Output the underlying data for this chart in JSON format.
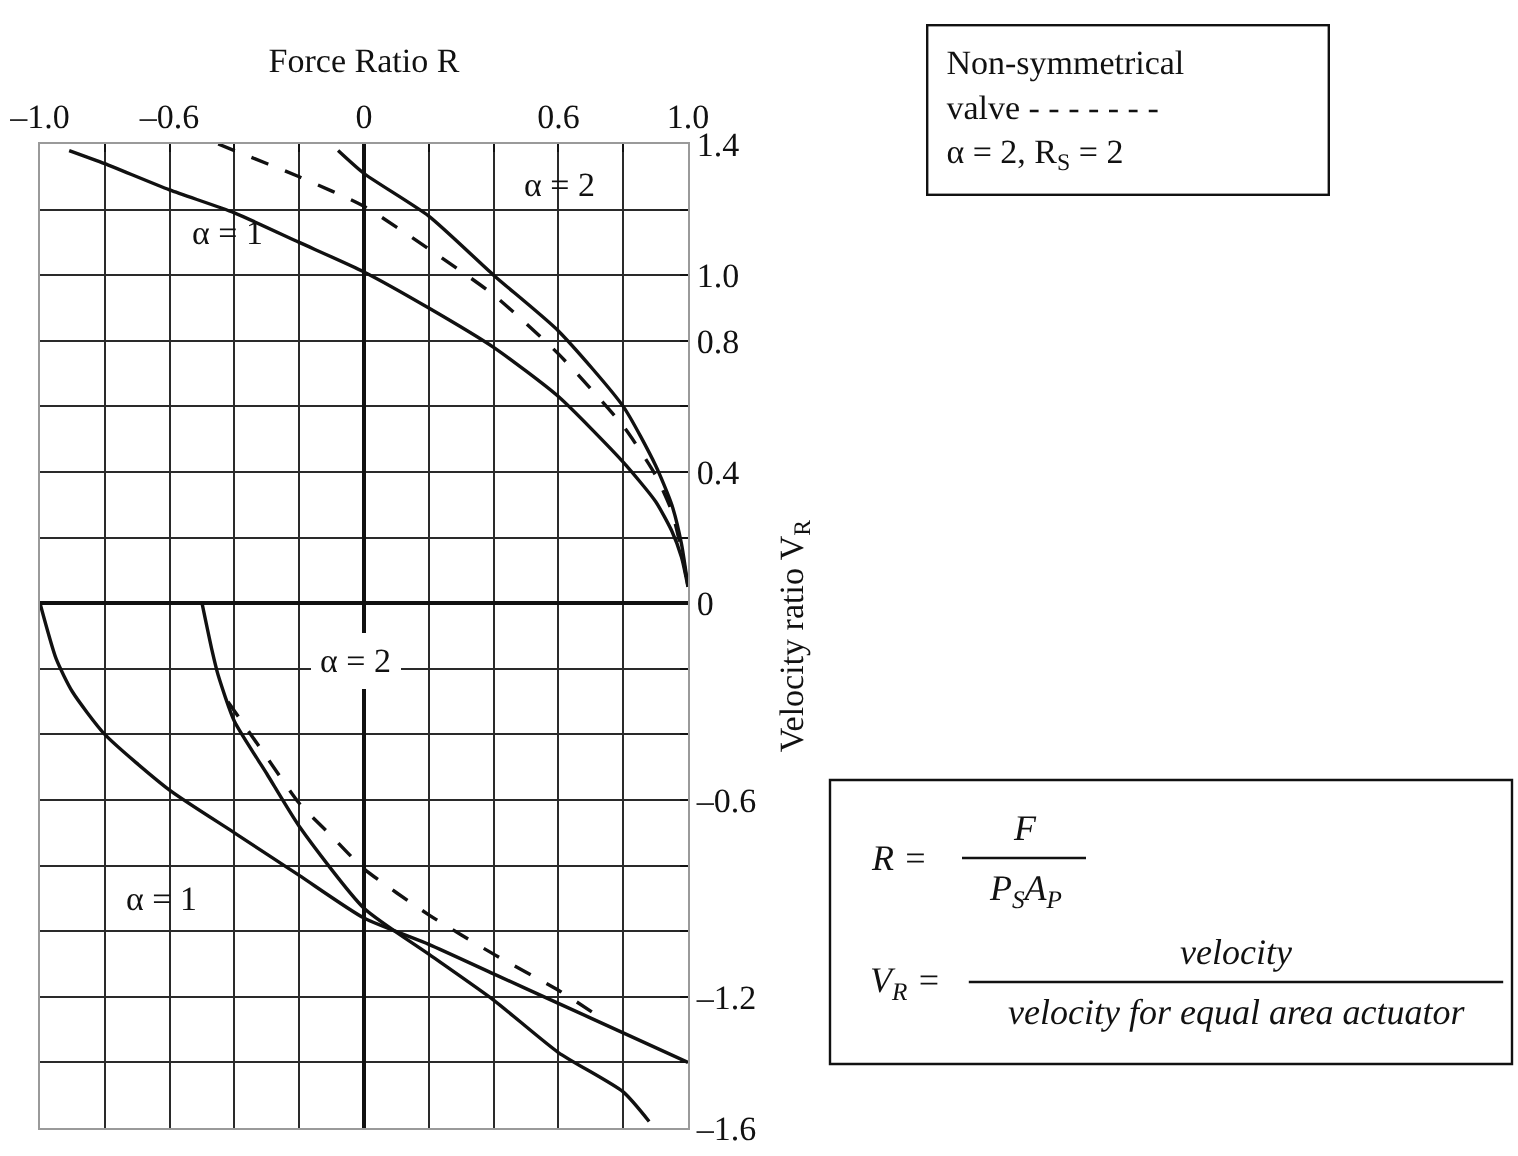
{
  "chart_data": {
    "type": "line",
    "xlabel": "Force Ratio R",
    "ylabel": "Velocity ratio V$_{R}$",
    "xlim": [
      -1,
      1
    ],
    "ylim": [
      -1.6,
      1.4
    ],
    "xticks": [
      {
        "value": -1,
        "label": "–1.0"
      },
      {
        "value": -0.8,
        "label": null
      },
      {
        "value": -0.6,
        "label": "–0.6"
      },
      {
        "value": -0.4,
        "label": null
      },
      {
        "value": -0.2,
        "label": null
      },
      0,
      {
        "value": 0.2,
        "label": null
      },
      {
        "value": 0.4,
        "label": null
      },
      0.6,
      {
        "value": 0.8,
        "label": null
      },
      {
        "value": 1,
        "label": "1.0"
      }
    ],
    "yticks": [
      1.4,
      {
        "value": 1.2,
        "label": null
      },
      {
        "value": 1,
        "label": "1.0"
      },
      0.8,
      {
        "value": 0.6,
        "label": null
      },
      0.4,
      {
        "value": 0.2,
        "label": null
      },
      0,
      {
        "value": -0.2,
        "label": null
      },
      {
        "value": -0.4,
        "label": null
      },
      {
        "value": -0.6,
        "label": "–0.6"
      },
      {
        "value": -0.8,
        "label": null
      },
      {
        "value": -1,
        "label": null
      },
      {
        "value": -1.2,
        "label": "–1.2"
      },
      {
        "value": -1.4,
        "label": null
      },
      {
        "value": -1.6,
        "label": "–1.6"
      }
    ],
    "grid": true,
    "line_style": "solid",
    "series": [
      {
        "color": "#111111",
        "x": [
          -0.91,
          -0.8,
          -0.6,
          -0.4,
          -0.2,
          0,
          0.2,
          0.4,
          0.6,
          0.8,
          0.9,
          0.95,
          0.98,
          1.0
        ],
        "values": [
          1.38,
          1.34,
          1.26,
          1.19,
          1.1,
          1.01,
          0.9,
          0.78,
          0.63,
          0.43,
          0.31,
          0.22,
          0.14,
          0.05
        ]
      },
      {
        "color": "#111111",
        "x": [
          -0.08,
          0,
          0.2,
          0.4,
          0.6,
          0.8,
          0.9,
          0.95,
          0.98,
          1.0
        ],
        "values": [
          1.38,
          1.31,
          1.18,
          1.0,
          0.83,
          0.6,
          0.42,
          0.3,
          0.18,
          0.05
        ]
      },
      {
        "color": "#111111",
        "line_style": "dashed",
        "x": [
          -0.45,
          -0.4,
          -0.2,
          0,
          0.2,
          0.4,
          0.6,
          0.8,
          0.9,
          0.95,
          0.98,
          1.0
        ],
        "values": [
          1.4,
          1.38,
          1.3,
          1.21,
          1.08,
          0.94,
          0.76,
          0.54,
          0.39,
          0.28,
          0.16,
          0.05
        ]
      },
      {
        "color": "#111111",
        "x": [
          -1.0,
          -0.95,
          -0.9,
          -0.8,
          -0.6,
          -0.4,
          -0.2,
          0,
          0.2,
          0.4,
          0.6,
          0.8,
          1.0
        ],
        "values": [
          0,
          -0.17,
          -0.27,
          -0.4,
          -0.57,
          -0.7,
          -0.83,
          -0.96,
          -1.04,
          -1.13,
          -1.22,
          -1.31,
          -1.4
        ]
      },
      {
        "color": "#111111",
        "x": [
          -0.5,
          -0.47,
          -0.45,
          -0.4,
          -0.3,
          -0.2,
          0,
          0.2,
          0.4,
          0.6,
          0.8,
          0.88
        ],
        "values": [
          0,
          -0.14,
          -0.22,
          -0.36,
          -0.52,
          -0.68,
          -0.93,
          -1.07,
          -1.21,
          -1.37,
          -1.49,
          -1.58
        ]
      },
      {
        "color": "#111111",
        "line_style": "dashed",
        "x": [
          -0.42,
          -0.3,
          -0.2,
          -0.1,
          0,
          0.2,
          0.4,
          0.6,
          0.74
        ],
        "values": [
          -0.3,
          -0.47,
          -0.61,
          -0.71,
          -0.81,
          -0.95,
          -1.07,
          -1.18,
          -1.27
        ]
      }
    ],
    "annotations": [
      "α = 1",
      "α = 2",
      "α = 2",
      "α = 1",
      "Non-symmetrical\nvalve - - - - - - -\nα = 2, R$_{S}$ = 2",
      "R =",
      "F",
      "P$_{S}$A$_{P}$",
      "V$_{R}$ =",
      "velocity",
      "velocity for equal area actuator"
    ]
  }
}
